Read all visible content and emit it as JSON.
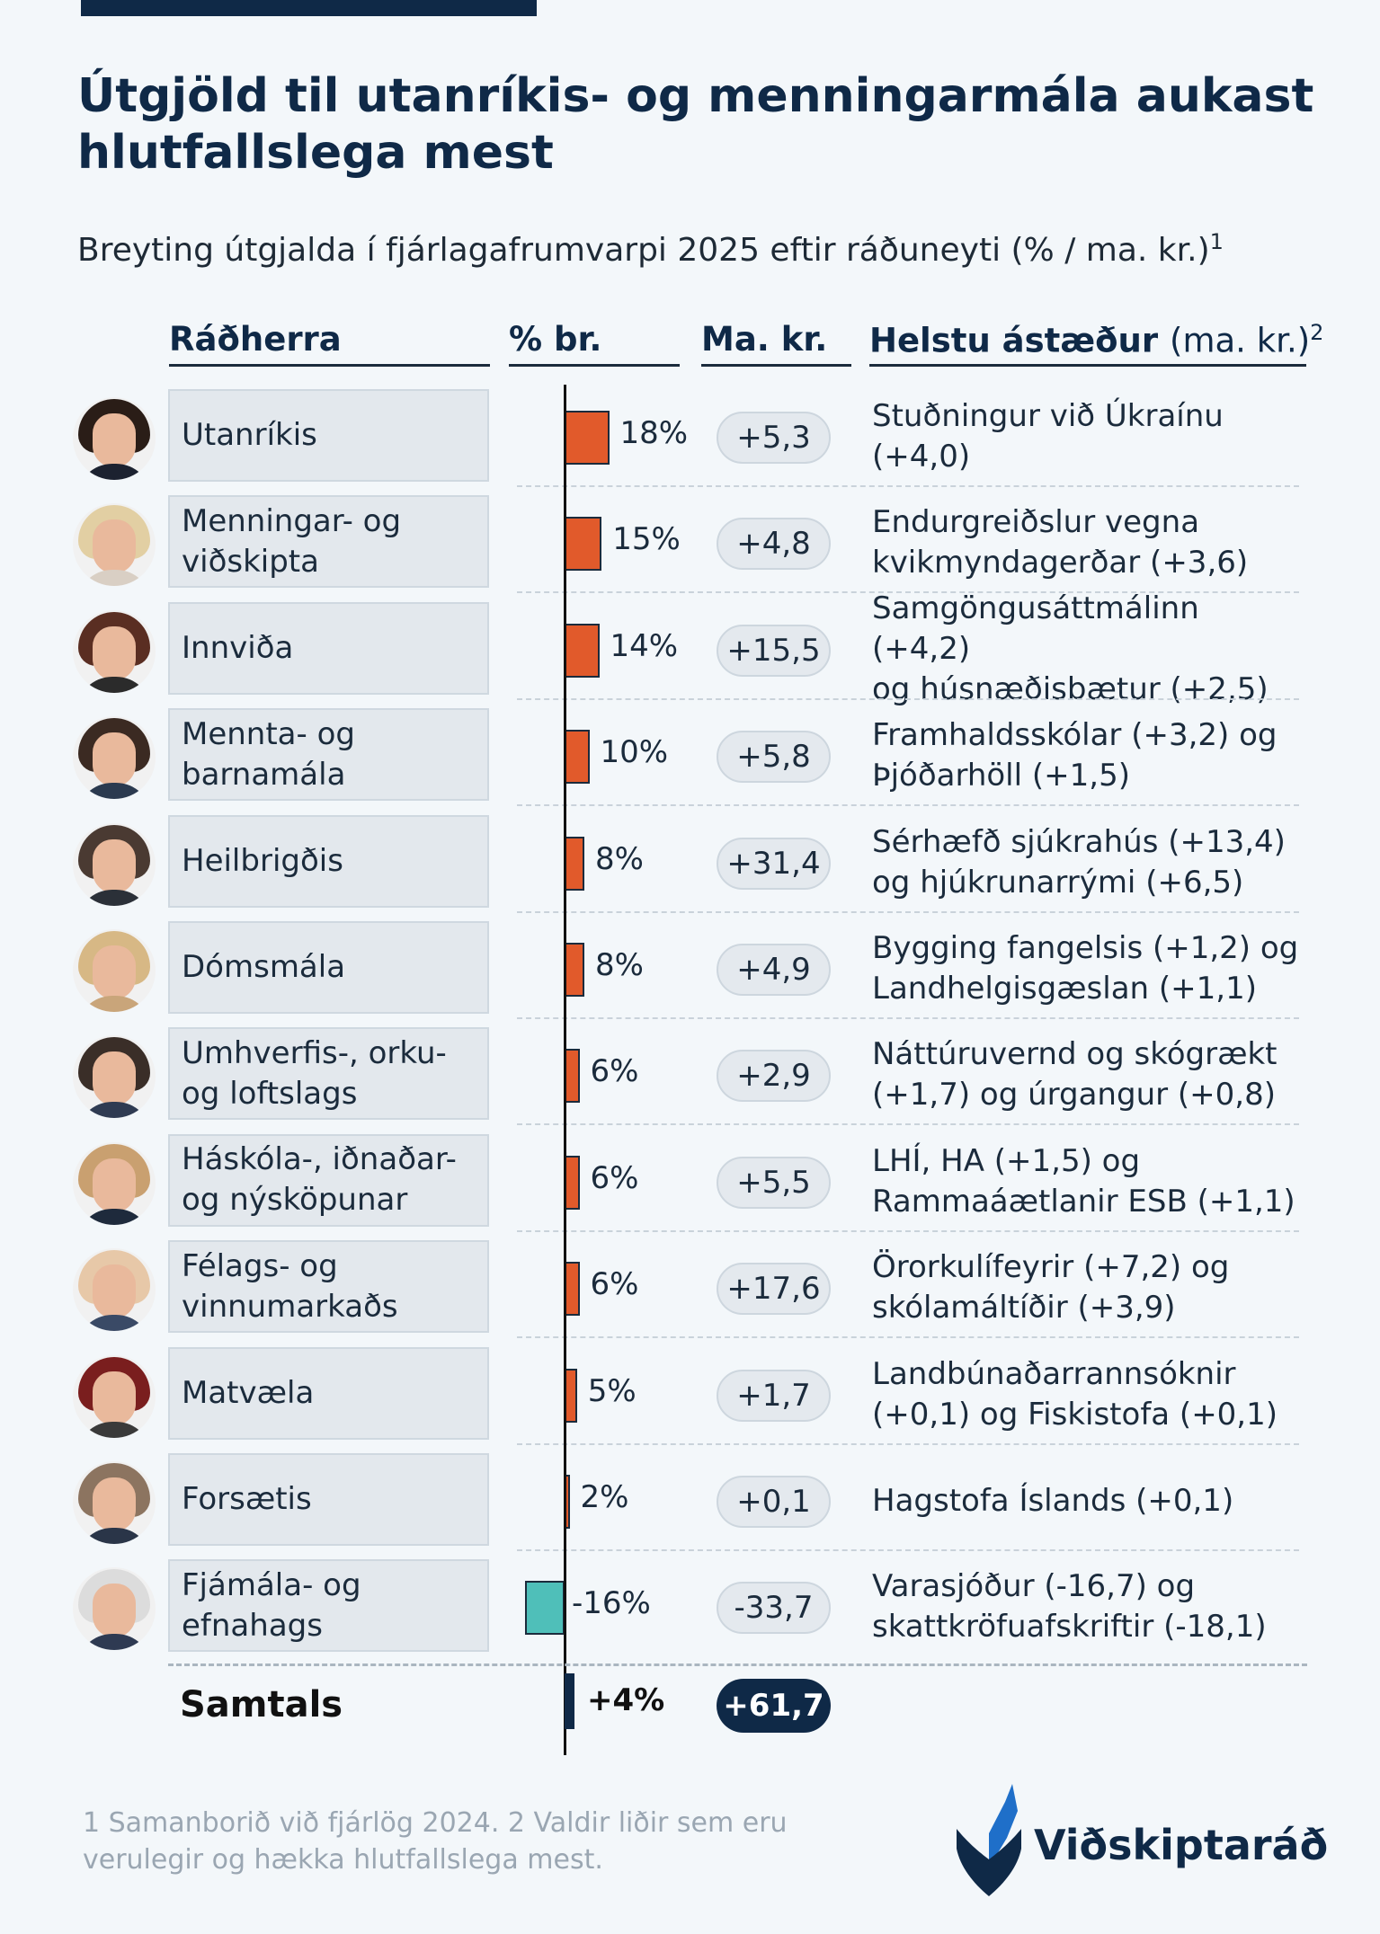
{
  "title": "Útgjöld til utanríkis- og menningarmála aukast hlutfallslega mest",
  "subtitle": "Breyting útgjalda í fjárlagafrumvarpi 2025 eftir ráðuneyti (% / ma. kr.)",
  "subtitle_sup": "1",
  "headers": {
    "minister": "Ráðherra",
    "pct": "% br.",
    "bn": "Ma. kr.",
    "reasons": "Helstu ástæður",
    "reasons_unit": "(ma. kr.)",
    "reasons_sup": "2"
  },
  "colors": {
    "positive": "#e15a2b",
    "negative": "#4fbfb9",
    "total": "#0f2947",
    "text": "#0f2947"
  },
  "chart_data": {
    "type": "bar",
    "orientation": "horizontal",
    "categories": [
      "Utanríkis",
      "Menningar- og viðskipta",
      "Innviða",
      "Mennta- og barnamála",
      "Heilbrigðis",
      "Dómsmála",
      "Umhverfis-, orku- og loftslags",
      "Háskóla-, iðnaðar- og nýsköpunar",
      "Félags- og vinnumarkaðs",
      "Matvæla",
      "Forsætis",
      "Fjámála- og efnahags"
    ],
    "series": [
      {
        "name": "% br.",
        "values": [
          18,
          15,
          14,
          10,
          8,
          8,
          6,
          6,
          6,
          5,
          2,
          -16
        ]
      },
      {
        "name": "Ma. kr.",
        "values": [
          5.3,
          4.8,
          15.5,
          5.8,
          31.4,
          4.9,
          2.9,
          5.5,
          17.6,
          1.7,
          0.1,
          -33.7
        ]
      }
    ],
    "total": {
      "label": "Samtals",
      "pct": 4,
      "bn": 61.7
    }
  },
  "rows": [
    {
      "label": "Utanríkis",
      "pct_label": "18%",
      "bn_label": "+5,3",
      "reason": "Stuðningur við Úkraínu\n(+4,0)"
    },
    {
      "label": "Menningar- og\nviðskipta",
      "pct_label": "15%",
      "bn_label": "+4,8",
      "reason": "Endurgreiðslur vegna\nkvikmyndagerðar (+3,6)"
    },
    {
      "label": "Innviða",
      "pct_label": "14%",
      "bn_label": "+15,5",
      "reason": "Samgöngusáttmálinn (+4,2)\nog húsnæðisbætur (+2,5)"
    },
    {
      "label": "Mennta- og\nbarnamála",
      "pct_label": "10%",
      "bn_label": "+5,8",
      "reason": "Framhaldsskólar (+3,2) og\nÞjóðarhöll (+1,5)"
    },
    {
      "label": "Heilbrigðis",
      "pct_label": "8%",
      "bn_label": "+31,4",
      "reason": "Sérhæfð sjúkrahús (+13,4)\nog hjúkrunarrými (+6,5)"
    },
    {
      "label": "Dómsmála",
      "pct_label": "8%",
      "bn_label": "+4,9",
      "reason": "Bygging fangelsis (+1,2) og\nLandhelgisgæslan (+1,1)"
    },
    {
      "label": "Umhverfis-, orku-\nog loftslags",
      "pct_label": "6%",
      "bn_label": "+2,9",
      "reason": "Náttúruvernd og skógrækt\n(+1,7) og úrgangur (+0,8)"
    },
    {
      "label": "Háskóla-, iðnaðar-\nog nýsköpunar",
      "pct_label": "6%",
      "bn_label": "+5,5",
      "reason": "LHÍ, HA (+1,5) og\nRammaáætlanir ESB (+1,1)"
    },
    {
      "label": "Félags- og\nvinnumarkaðs",
      "pct_label": "6%",
      "bn_label": "+17,6",
      "reason": "Örorkulífeyrir (+7,2) og\nskólamáltíðir (+3,9)"
    },
    {
      "label": "Matvæla",
      "pct_label": "5%",
      "bn_label": "+1,7",
      "reason": "Landbúnaðarrannsóknir\n(+0,1) og Fiskistofa (+0,1)"
    },
    {
      "label": "Forsætis",
      "pct_label": "2%",
      "bn_label": "+0,1",
      "reason": "Hagstofa Íslands (+0,1)"
    },
    {
      "label": "Fjámála- og\nefnahags",
      "pct_label": "-16%",
      "bn_label": "-33,7",
      "reason": "Varasjóður (-16,7) og\nskattkröfuafskriftir (-18,1)"
    }
  ],
  "total": {
    "label": "Samtals",
    "pct_label": "+4%",
    "bn_label": "+61,7"
  },
  "footnote": "1 Samanborið við fjárlög 2024. 2 Valdir liðir sem eru verulegir og hækka hlutfallslega mest.",
  "logo_text": "Viðskiptaráð",
  "avatars": [
    {
      "hair": "#2a1d17",
      "shirt": "#1c2230"
    },
    {
      "hair": "#e2cfa3",
      "shirt": "#d9cfc4"
    },
    {
      "hair": "#5a2e22",
      "shirt": "#2b2b2b"
    },
    {
      "hair": "#3b2a22",
      "shirt": "#2b3a4f"
    },
    {
      "hair": "#4a3a32",
      "shirt": "#2b3038"
    },
    {
      "hair": "#d7b885",
      "shirt": "#c9a57a"
    },
    {
      "hair": "#3a2e28",
      "shirt": "#2f3b52"
    },
    {
      "hair": "#c9a070",
      "shirt": "#1e2a3c"
    },
    {
      "hair": "#e7c8a8",
      "shirt": "#3a4a66"
    },
    {
      "hair": "#7a1e1e",
      "shirt": "#3a3a3a"
    },
    {
      "hair": "#8c7460",
      "shirt": "#2a3548"
    },
    {
      "hair": "#dcdcdc",
      "shirt": "#2e3a52"
    }
  ]
}
